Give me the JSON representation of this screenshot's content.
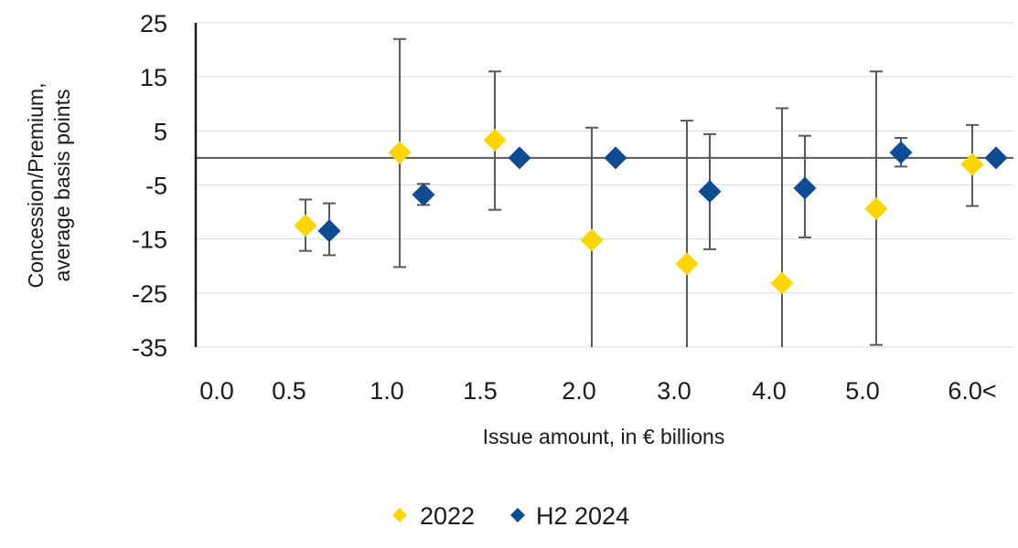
{
  "chart_data": {
    "type": "scatter",
    "title": "",
    "xlabel": "Issue amount, in € billions",
    "ylabel_lines": [
      "Concession/Premium,",
      "average basis points"
    ],
    "x_tick_labels": [
      "0.0",
      "0.5",
      "1.0",
      "1.5",
      "2.0",
      "3.0",
      "4.0",
      "5.0",
      "6.0<"
    ],
    "y_ticks": [
      25,
      15,
      5,
      -5,
      -15,
      -25,
      -35
    ],
    "y_tick_labels": [
      "25",
      "15",
      "5",
      "-5",
      "-15",
      "-25",
      "-35"
    ],
    "ylim": [
      -35,
      25
    ],
    "grid": true,
    "legend_position": "bottom-center",
    "series": [
      {
        "name": "2022",
        "color": "#FFD500",
        "marker": "diamond",
        "points": [
          {
            "bucket": "0.5",
            "y": -12.5,
            "err_low": -17.2,
            "err_high": -7.7
          },
          {
            "bucket": "1.0",
            "y": 1.0,
            "err_low": -20.2,
            "err_high": 22.0
          },
          {
            "bucket": "1.5",
            "y": 3.3,
            "err_low": -9.6,
            "err_high": 16.0
          },
          {
            "bucket": "2.0",
            "y": -15.2,
            "err_low": -35.0,
            "err_high": 5.6
          },
          {
            "bucket": "3.0",
            "y": -19.6,
            "err_low": -35.0,
            "err_high": 6.9
          },
          {
            "bucket": "4.0",
            "y": -23.2,
            "err_low": -35.0,
            "err_high": 9.2
          },
          {
            "bucket": "5.0",
            "y": -9.4,
            "err_low": -34.6,
            "err_high": 16.0
          },
          {
            "bucket": "6.0<",
            "y": -1.2,
            "err_low": -8.9,
            "err_high": 6.1
          }
        ]
      },
      {
        "name": "H2 2024",
        "color": "#0D4C92",
        "marker": "diamond",
        "points": [
          {
            "bucket": "0.5",
            "y": -13.5,
            "err_low": -18.0,
            "err_high": -8.4
          },
          {
            "bucket": "1.0",
            "y": -6.8,
            "err_low": -8.7,
            "err_high": -4.8
          },
          {
            "bucket": "1.5",
            "y": 0.0,
            "err_low": 0.0,
            "err_high": 0.0
          },
          {
            "bucket": "2.0",
            "y": 0.0,
            "err_low": 0.0,
            "err_high": 0.0
          },
          {
            "bucket": "3.0",
            "y": -6.2,
            "err_low": -16.9,
            "err_high": 4.4
          },
          {
            "bucket": "4.0",
            "y": -5.6,
            "err_low": -14.7,
            "err_high": 4.1
          },
          {
            "bucket": "5.0",
            "y": 1.0,
            "err_low": -1.6,
            "err_high": 3.7
          },
          {
            "bucket": "6.0<",
            "y": 0.0,
            "err_low": 0.0,
            "err_high": 0.0
          }
        ]
      }
    ]
  }
}
